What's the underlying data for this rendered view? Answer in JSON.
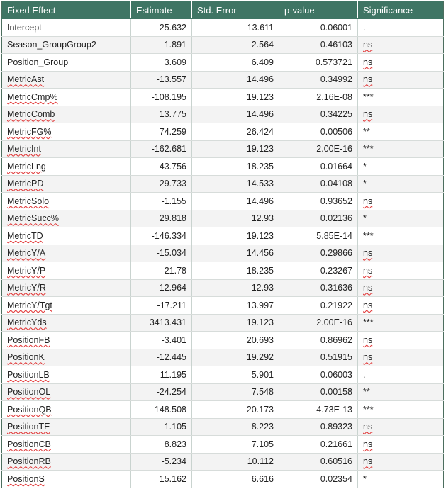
{
  "table": {
    "headers": [
      "Fixed Effect",
      "Estimate",
      "Std. Error",
      "p-value",
      "Significance"
    ],
    "rows": [
      {
        "effect": "Intercept",
        "estimate": "25.632",
        "std_error": "13.611",
        "p_value": "0.06001",
        "significance": ".",
        "spellcheck": false,
        "sig_spell": false
      },
      {
        "effect": "Season_GroupGroup2",
        "estimate": "-1.891",
        "std_error": "2.564",
        "p_value": "0.46103",
        "significance": "ns",
        "spellcheck": false,
        "sig_spell": true
      },
      {
        "effect": "Position_Group",
        "estimate": "3.609",
        "std_error": "6.409",
        "p_value": "0.573721",
        "significance": "ns",
        "spellcheck": false,
        "sig_spell": true
      },
      {
        "effect": "MetricAst",
        "estimate": "-13.557",
        "std_error": "14.496",
        "p_value": "0.34992",
        "significance": "ns",
        "spellcheck": true,
        "sig_spell": true
      },
      {
        "effect": "MetricCmp%",
        "estimate": "-108.195",
        "std_error": "19.123",
        "p_value": "2.16E-08",
        "significance": "***",
        "spellcheck": true,
        "sig_spell": false
      },
      {
        "effect": "MetricComb",
        "estimate": "13.775",
        "std_error": "14.496",
        "p_value": "0.34225",
        "significance": "ns",
        "spellcheck": true,
        "sig_spell": true
      },
      {
        "effect": "MetricFG%",
        "estimate": "74.259",
        "std_error": "26.424",
        "p_value": "0.00506",
        "significance": "**",
        "spellcheck": true,
        "sig_spell": false
      },
      {
        "effect": "MetricInt",
        "estimate": "-162.681",
        "std_error": "19.123",
        "p_value": "2.00E-16",
        "significance": "***",
        "spellcheck": true,
        "sig_spell": false
      },
      {
        "effect": "MetricLng",
        "estimate": "43.756",
        "std_error": "18.235",
        "p_value": "0.01664",
        "significance": "*",
        "spellcheck": true,
        "sig_spell": false
      },
      {
        "effect": "MetricPD",
        "estimate": "-29.733",
        "std_error": "14.533",
        "p_value": "0.04108",
        "significance": "*",
        "spellcheck": true,
        "sig_spell": false
      },
      {
        "effect": "MetricSolo",
        "estimate": "-1.155",
        "std_error": "14.496",
        "p_value": "0.93652",
        "significance": "ns",
        "spellcheck": true,
        "sig_spell": true
      },
      {
        "effect": "MetricSucc%",
        "estimate": "29.818",
        "std_error": "12.93",
        "p_value": "0.02136",
        "significance": "*",
        "spellcheck": true,
        "sig_spell": false
      },
      {
        "effect": "MetricTD",
        "estimate": "-146.334",
        "std_error": "19.123",
        "p_value": "5.85E-14",
        "significance": "***",
        "spellcheck": true,
        "sig_spell": false
      },
      {
        "effect": "MetricY/A",
        "estimate": "-15.034",
        "std_error": "14.456",
        "p_value": "0.29866",
        "significance": "ns",
        "spellcheck": true,
        "sig_spell": true
      },
      {
        "effect": "MetricY/P",
        "estimate": "21.78",
        "std_error": "18.235",
        "p_value": "0.23267",
        "significance": "ns",
        "spellcheck": true,
        "sig_spell": true
      },
      {
        "effect": "MetricY/R",
        "estimate": "-12.964",
        "std_error": "12.93",
        "p_value": "0.31636",
        "significance": "ns",
        "spellcheck": true,
        "sig_spell": true
      },
      {
        "effect": "MetricY/Tgt",
        "estimate": "-17.211",
        "std_error": "13.997",
        "p_value": "0.21922",
        "significance": "ns",
        "spellcheck": true,
        "sig_spell": true
      },
      {
        "effect": "MetricYds",
        "estimate": "3413.431",
        "std_error": "19.123",
        "p_value": "2.00E-16",
        "significance": "***",
        "spellcheck": true,
        "sig_spell": false
      },
      {
        "effect": "PositionFB",
        "estimate": "-3.401",
        "std_error": "20.693",
        "p_value": "0.86962",
        "significance": "ns",
        "spellcheck": true,
        "sig_spell": true
      },
      {
        "effect": "PositionK",
        "estimate": "-12.445",
        "std_error": "19.292",
        "p_value": "0.51915",
        "significance": "ns",
        "spellcheck": true,
        "sig_spell": true
      },
      {
        "effect": "PositionLB",
        "estimate": "11.195",
        "std_error": "5.901",
        "p_value": "0.06003",
        "significance": ".",
        "spellcheck": true,
        "sig_spell": false
      },
      {
        "effect": "PositionOL",
        "estimate": "-24.254",
        "std_error": "7.548",
        "p_value": "0.00158",
        "significance": "**",
        "spellcheck": true,
        "sig_spell": false
      },
      {
        "effect": "PositionQB",
        "estimate": "148.508",
        "std_error": "20.173",
        "p_value": "4.73E-13",
        "significance": "***",
        "spellcheck": true,
        "sig_spell": false
      },
      {
        "effect": "PositionTE",
        "estimate": "1.105",
        "std_error": "8.223",
        "p_value": "0.89323",
        "significance": "ns",
        "spellcheck": true,
        "sig_spell": true
      },
      {
        "effect": "PositionCB",
        "estimate": "8.823",
        "std_error": "7.105",
        "p_value": "0.21661",
        "significance": "ns",
        "spellcheck": true,
        "sig_spell": true
      },
      {
        "effect": "PositionRB",
        "estimate": "-5.234",
        "std_error": "10.112",
        "p_value": "0.60516",
        "significance": "ns",
        "spellcheck": true,
        "sig_spell": true
      },
      {
        "effect": "PositionS",
        "estimate": "15.162",
        "std_error": "6.616",
        "p_value": "0.02354",
        "significance": "*",
        "spellcheck": true,
        "sig_spell": false
      }
    ]
  },
  "colors": {
    "header_bg": "#3f7564",
    "header_text": "#ffffff",
    "stripe": "#f3f3f3",
    "spellcheck_underline": "#e03030"
  }
}
